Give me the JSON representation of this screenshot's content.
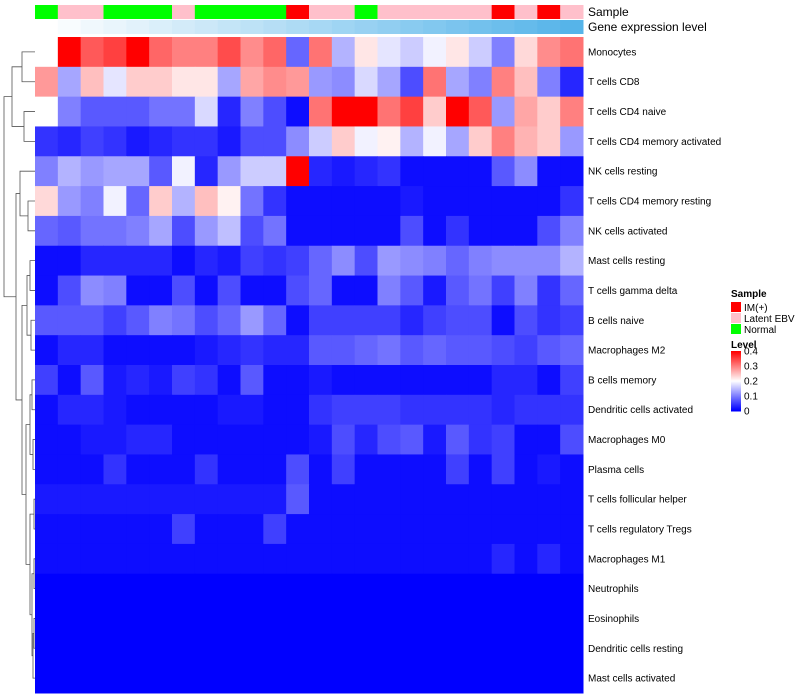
{
  "chart_data": {
    "type": "heatmap",
    "title": "",
    "annotation_tracks": [
      {
        "name": "Sample",
        "label": "Sample"
      },
      {
        "name": "Gene expression level",
        "label": "Gene expression level"
      }
    ],
    "sample_groups": [
      "N",
      "L",
      "L",
      "N",
      "N",
      "N",
      "L",
      "N",
      "N",
      "N",
      "N",
      "I",
      "L",
      "L",
      "N",
      "L",
      "L",
      "L",
      "L",
      "L",
      "I",
      "L",
      "I",
      "L"
    ],
    "gene_expression_level": [
      0.02,
      0.04,
      0.06,
      0.08,
      0.1,
      0.12,
      0.14,
      0.16,
      0.18,
      0.2,
      0.22,
      0.24,
      0.26,
      0.28,
      0.3,
      0.32,
      0.34,
      0.36,
      0.38,
      0.4,
      0.42,
      0.44,
      0.46,
      0.48
    ],
    "gene_expression_colors": {
      "low": "#FFFFFF",
      "high": "#56B4E9"
    },
    "rows": [
      "Monocytes",
      "T cells CD8",
      "T cells CD4 naive",
      "T cells CD4 memory activated",
      "NK cells resting",
      "T cells CD4 memory resting",
      "NK cells activated",
      "Mast cells resting",
      "T cells gamma delta",
      "B cells naive",
      "Macrophages M2",
      "B cells memory",
      "Dendritic cells activated",
      "Macrophages M0",
      "Plasma cells",
      "T cells follicular helper",
      "T cells regulatory  Tregs",
      "Macrophages M1",
      "Neutrophils",
      "Eosinophils",
      "Dendritic cells resting",
      "Mast cells activated"
    ],
    "values": [
      [
        0.2,
        0.4,
        0.33,
        0.35,
        0.4,
        0.32,
        0.3,
        0.3,
        0.34,
        0.29,
        0.32,
        0.08,
        0.31,
        0.14,
        0.22,
        0.18,
        0.16,
        0.19,
        0.22,
        0.16,
        0.1,
        0.23,
        0.29,
        0.31
      ],
      [
        0.28,
        0.13,
        0.25,
        0.18,
        0.24,
        0.24,
        0.22,
        0.22,
        0.13,
        0.27,
        0.29,
        0.28,
        0.12,
        0.11,
        0.17,
        0.13,
        0.06,
        0.31,
        0.13,
        0.1,
        0.3,
        0.25,
        0.1,
        0.03
      ],
      [
        0.2,
        0.1,
        0.07,
        0.07,
        0.07,
        0.09,
        0.09,
        0.17,
        0.03,
        0.1,
        0.06,
        0.01,
        0.31,
        0.4,
        0.4,
        0.31,
        0.35,
        0.24,
        0.4,
        0.33,
        0.12,
        0.27,
        0.24,
        0.3
      ],
      [
        0.04,
        0.03,
        0.05,
        0.04,
        0.02,
        0.03,
        0.04,
        0.04,
        0.02,
        0.06,
        0.06,
        0.11,
        0.16,
        0.24,
        0.19,
        0.21,
        0.14,
        0.19,
        0.13,
        0.24,
        0.3,
        0.26,
        0.24,
        0.12
      ],
      [
        0.1,
        0.14,
        0.12,
        0.13,
        0.13,
        0.07,
        0.19,
        0.03,
        0.12,
        0.16,
        0.16,
        0.4,
        0.03,
        0.02,
        0.03,
        0.04,
        0.01,
        0.01,
        0.01,
        0.01,
        0.07,
        0.11,
        0.01,
        0.01
      ],
      [
        0.23,
        0.12,
        0.1,
        0.19,
        0.08,
        0.24,
        0.14,
        0.25,
        0.21,
        0.09,
        0.04,
        0.01,
        0.01,
        0.01,
        0.01,
        0.01,
        0.02,
        0.01,
        0.01,
        0.01,
        0.01,
        0.01,
        0.01,
        0.04
      ],
      [
        0.08,
        0.07,
        0.09,
        0.09,
        0.1,
        0.13,
        0.06,
        0.12,
        0.15,
        0.06,
        0.09,
        0.01,
        0.01,
        0.01,
        0.01,
        0.01,
        0.06,
        0.01,
        0.04,
        0.01,
        0.01,
        0.01,
        0.06,
        0.1
      ],
      [
        0.01,
        0.01,
        0.03,
        0.03,
        0.03,
        0.03,
        0.01,
        0.03,
        0.02,
        0.05,
        0.04,
        0.05,
        0.08,
        0.11,
        0.06,
        0.12,
        0.11,
        0.1,
        0.08,
        0.1,
        0.11,
        0.11,
        0.11,
        0.14
      ],
      [
        0.01,
        0.06,
        0.11,
        0.1,
        0.01,
        0.01,
        0.06,
        0.01,
        0.06,
        0.01,
        0.01,
        0.06,
        0.08,
        0.01,
        0.01,
        0.1,
        0.07,
        0.02,
        0.07,
        0.09,
        0.05,
        0.1,
        0.04,
        0.08
      ],
      [
        0.07,
        0.07,
        0.07,
        0.05,
        0.07,
        0.1,
        0.09,
        0.06,
        0.08,
        0.12,
        0.08,
        0.01,
        0.05,
        0.05,
        0.05,
        0.05,
        0.03,
        0.05,
        0.06,
        0.06,
        0.01,
        0.06,
        0.04,
        0.05
      ],
      [
        0.01,
        0.03,
        0.03,
        0.01,
        0.01,
        0.01,
        0.01,
        0.02,
        0.03,
        0.04,
        0.03,
        0.03,
        0.07,
        0.07,
        0.08,
        0.09,
        0.07,
        0.08,
        0.07,
        0.07,
        0.06,
        0.05,
        0.07,
        0.08
      ],
      [
        0.05,
        0.01,
        0.07,
        0.02,
        0.03,
        0.02,
        0.05,
        0.04,
        0.01,
        0.07,
        0.01,
        0.01,
        0.02,
        0.01,
        0.01,
        0.01,
        0.01,
        0.01,
        0.01,
        0.01,
        0.03,
        0.03,
        0.01,
        0.05
      ],
      [
        0.01,
        0.03,
        0.03,
        0.02,
        0.01,
        0.01,
        0.01,
        0.01,
        0.02,
        0.02,
        0.01,
        0.01,
        0.04,
        0.05,
        0.05,
        0.05,
        0.04,
        0.04,
        0.04,
        0.04,
        0.03,
        0.04,
        0.04,
        0.04
      ],
      [
        0.01,
        0.01,
        0.02,
        0.02,
        0.03,
        0.03,
        0.01,
        0.01,
        0.01,
        0.01,
        0.01,
        0.01,
        0.02,
        0.06,
        0.03,
        0.06,
        0.07,
        0.02,
        0.07,
        0.04,
        0.05,
        0.01,
        0.01,
        0.06
      ],
      [
        0.01,
        0.01,
        0.01,
        0.04,
        0.01,
        0.01,
        0.01,
        0.04,
        0.01,
        0.01,
        0.01,
        0.06,
        0.01,
        0.05,
        0.01,
        0.01,
        0.01,
        0.01,
        0.05,
        0.01,
        0.05,
        0.01,
        0.02,
        0.01
      ],
      [
        0.02,
        0.02,
        0.02,
        0.02,
        0.02,
        0.02,
        0.02,
        0.02,
        0.02,
        0.02,
        0.02,
        0.07,
        0.01,
        0.01,
        0.01,
        0.01,
        0.01,
        0.01,
        0.01,
        0.01,
        0.01,
        0.01,
        0.01,
        0.01
      ],
      [
        0.01,
        0.01,
        0.01,
        0.01,
        0.01,
        0.01,
        0.05,
        0.01,
        0.01,
        0.01,
        0.05,
        0.01,
        0.01,
        0.01,
        0.01,
        0.01,
        0.01,
        0.01,
        0.01,
        0.01,
        0.01,
        0.01,
        0.01,
        0.01
      ],
      [
        0.01,
        0.01,
        0.01,
        0.01,
        0.01,
        0.01,
        0.01,
        0.01,
        0.01,
        0.01,
        0.01,
        0.01,
        0.01,
        0.01,
        0.01,
        0.01,
        0.01,
        0.01,
        0.01,
        0.01,
        0.03,
        0.01,
        0.03,
        0.01
      ],
      [
        0.0,
        0.0,
        0.0,
        0.0,
        0.0,
        0.0,
        0.0,
        0.0,
        0.0,
        0.0,
        0.0,
        0.0,
        0.0,
        0.0,
        0.0,
        0.0,
        0.0,
        0.0,
        0.0,
        0.0,
        0.0,
        0.0,
        0.0,
        0.0
      ],
      [
        0.0,
        0.0,
        0.0,
        0.0,
        0.0,
        0.0,
        0.0,
        0.0,
        0.0,
        0.0,
        0.0,
        0.0,
        0.0,
        0.0,
        0.0,
        0.0,
        0.0,
        0.0,
        0.0,
        0.0,
        0.0,
        0.0,
        0.0,
        0.0
      ],
      [
        0.0,
        0.0,
        0.0,
        0.0,
        0.0,
        0.0,
        0.0,
        0.0,
        0.0,
        0.0,
        0.0,
        0.0,
        0.0,
        0.0,
        0.0,
        0.0,
        0.0,
        0.0,
        0.0,
        0.0,
        0.0,
        0.0,
        0.0,
        0.0
      ],
      [
        0.0,
        0.0,
        0.0,
        0.0,
        0.0,
        0.0,
        0.0,
        0.0,
        0.0,
        0.0,
        0.0,
        0.0,
        0.0,
        0.0,
        0.0,
        0.0,
        0.0,
        0.0,
        0.0,
        0.0,
        0.0,
        0.0,
        0.0,
        0.0
      ]
    ],
    "color_scale": {
      "low": "#0000FF",
      "mid": "#FFFFFF",
      "high": "#FF0000",
      "min": 0,
      "mid_value": 0.2,
      "max": 0.4
    },
    "legend": {
      "sample_title": "Sample",
      "sample_entries": [
        {
          "key": "I",
          "label": "IM(+)",
          "color": "#FF0000"
        },
        {
          "key": "L",
          "label": "Latent EBV",
          "color": "#FFC0CB"
        },
        {
          "key": "N",
          "label": "Normal",
          "color": "#00FF00"
        }
      ],
      "level_title": "Level",
      "level_ticks": [
        "0.4",
        "0.3",
        "0.2",
        "0.1",
        "0"
      ],
      "level_tick_values": [
        0.4,
        0.3,
        0.2,
        0.1,
        0
      ],
      "placement": "right"
    },
    "dendrogram": "row"
  }
}
